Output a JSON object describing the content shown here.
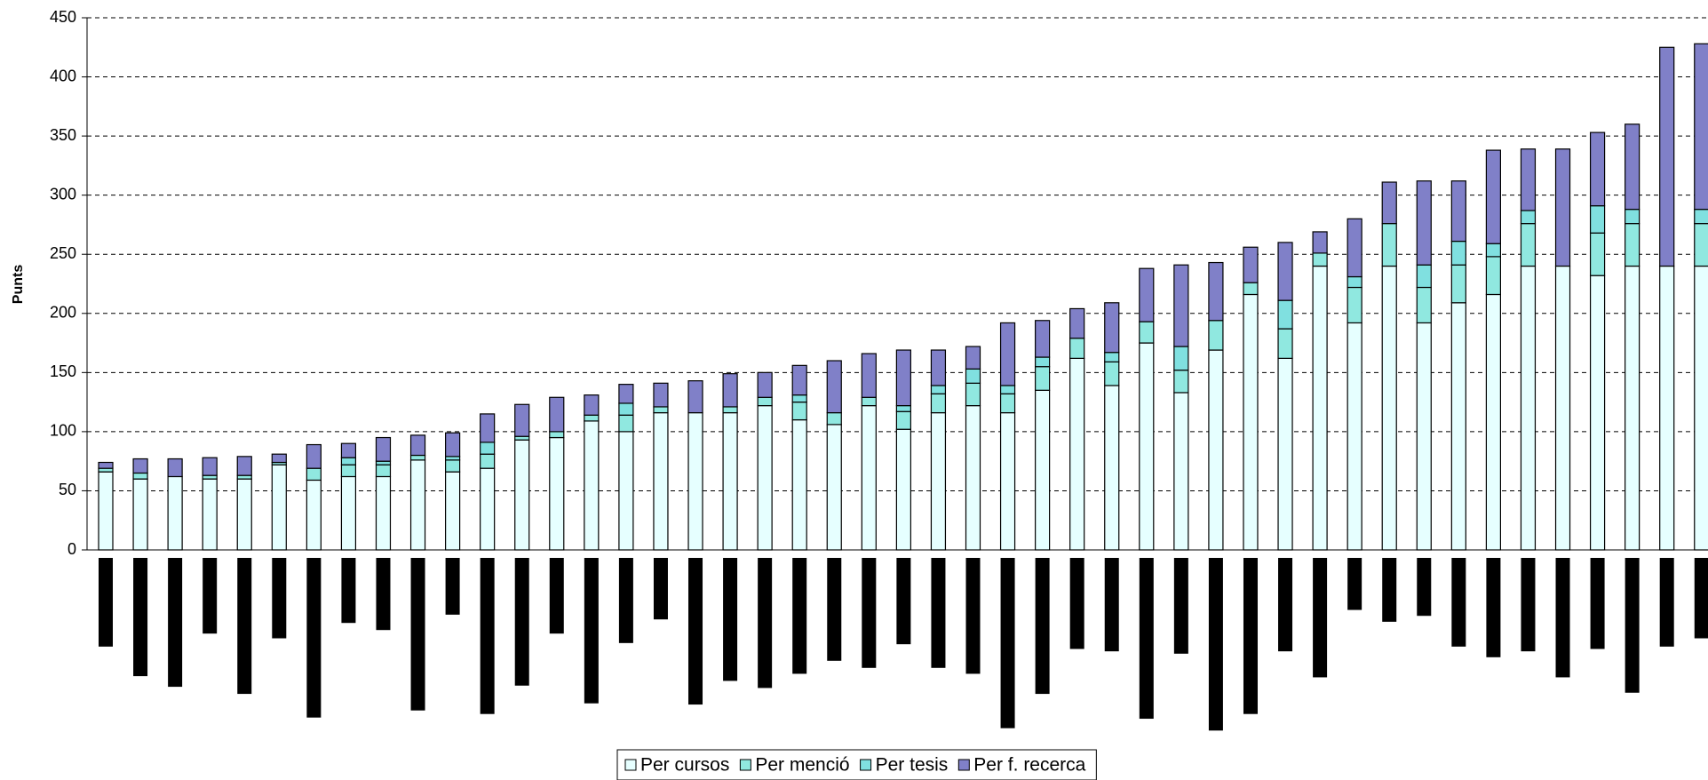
{
  "chart_data": {
    "type": "stacked_bar",
    "y_label": "Punts",
    "categories": [
      null,
      null,
      null,
      null,
      null,
      null,
      null,
      null,
      null,
      null,
      null,
      null,
      null,
      null,
      null,
      null,
      null,
      null,
      null,
      null,
      null,
      null,
      null,
      null,
      null,
      null,
      null,
      null,
      null,
      null,
      null,
      null,
      null,
      null,
      null,
      null,
      null,
      null,
      null,
      null,
      null,
      null,
      null,
      null,
      null,
      null,
      null
    ],
    "series": [
      {
        "name": "Per cursos",
        "color": "#e6ffff",
        "values": [
          66,
          60,
          62,
          60,
          60,
          72,
          59,
          62,
          62,
          76,
          66,
          69,
          93,
          95,
          109,
          100,
          116,
          116,
          116,
          122,
          110,
          106,
          122,
          102,
          116,
          122,
          116,
          135,
          162,
          139,
          175,
          133,
          169,
          216,
          162,
          240,
          192,
          240,
          192,
          209,
          216,
          240,
          240,
          232,
          240,
          240,
          240
        ]
      },
      {
        "name": "Per menció",
        "color": "#90e8e0",
        "values": [
          3,
          5,
          0,
          3,
          3,
          2,
          10,
          10,
          10,
          4,
          10,
          12,
          3,
          5,
          5,
          14,
          5,
          0,
          5,
          7,
          15,
          10,
          7,
          15,
          16,
          19,
          16,
          20,
          17,
          20,
          18,
          19,
          25,
          10,
          25,
          11,
          30,
          36,
          30,
          32,
          32,
          36,
          0,
          36,
          36,
          0,
          36
        ]
      },
      {
        "name": "Per tesis",
        "color": "#80e0e0",
        "values": [
          0,
          0,
          0,
          0,
          0,
          0,
          0,
          6,
          3,
          0,
          3,
          10,
          0,
          0,
          0,
          10,
          0,
          0,
          0,
          0,
          6,
          0,
          0,
          5,
          7,
          12,
          7,
          8,
          0,
          8,
          0,
          20,
          0,
          0,
          24,
          0,
          9,
          0,
          19,
          20,
          11,
          11,
          0,
          23,
          12,
          0,
          12
        ]
      },
      {
        "name": "Per f. recerca",
        "color": "#8080c8",
        "values": [
          5,
          12,
          15,
          15,
          16,
          7,
          20,
          12,
          20,
          17,
          20,
          24,
          27,
          29,
          17,
          16,
          20,
          27,
          28,
          21,
          25,
          44,
          37,
          47,
          30,
          19,
          53,
          31,
          25,
          42,
          45,
          69,
          49,
          30,
          49,
          18,
          49,
          35,
          71,
          51,
          79,
          52,
          99,
          62,
          72,
          185,
          140
        ]
      }
    ],
    "lower_bars": {
      "color": "#000000",
      "values": [
        75,
        100,
        109,
        64,
        115,
        68,
        135,
        55,
        61,
        129,
        48,
        132,
        108,
        64,
        123,
        72,
        52,
        124,
        104,
        110,
        98,
        87,
        93,
        73,
        93,
        98,
        144,
        115,
        77,
        79,
        136,
        81,
        146,
        132,
        79,
        101,
        44,
        54,
        49,
        75,
        84,
        79,
        101,
        77,
        114,
        75,
        68
      ]
    },
    "ylim": [
      0,
      450
    ],
    "yticks": [
      0,
      50,
      100,
      150,
      200,
      250,
      300,
      350,
      400,
      450
    ],
    "grid": true,
    "legend": "bottom"
  }
}
